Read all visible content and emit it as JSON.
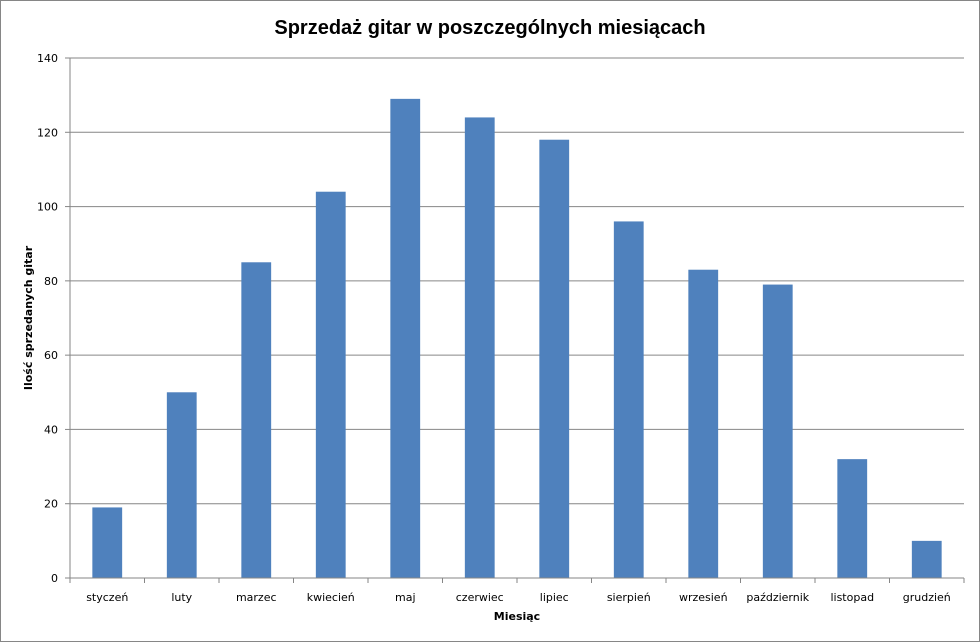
{
  "chart_data": {
    "type": "bar",
    "title": "Sprzedaż gitar w poszczególnych miesiącach",
    "xlabel": "Miesiąc",
    "ylabel": "Ilość sprzedanych  gitar",
    "categories": [
      "styczeń",
      "luty",
      "marzec",
      "kwiecień",
      "maj",
      "czerwiec",
      "lipiec",
      "sierpień",
      "wrzesień",
      "październik",
      "listopad",
      "grudzień"
    ],
    "values": [
      19,
      50,
      85,
      104,
      129,
      124,
      118,
      96,
      83,
      79,
      32,
      10
    ],
    "ylim": [
      0,
      140
    ],
    "yticks": [
      "0",
      "20",
      "40",
      "60",
      "80",
      "100",
      "120",
      "140"
    ],
    "grid": true,
    "legend": "none",
    "bar_color": "#4F81BD"
  }
}
